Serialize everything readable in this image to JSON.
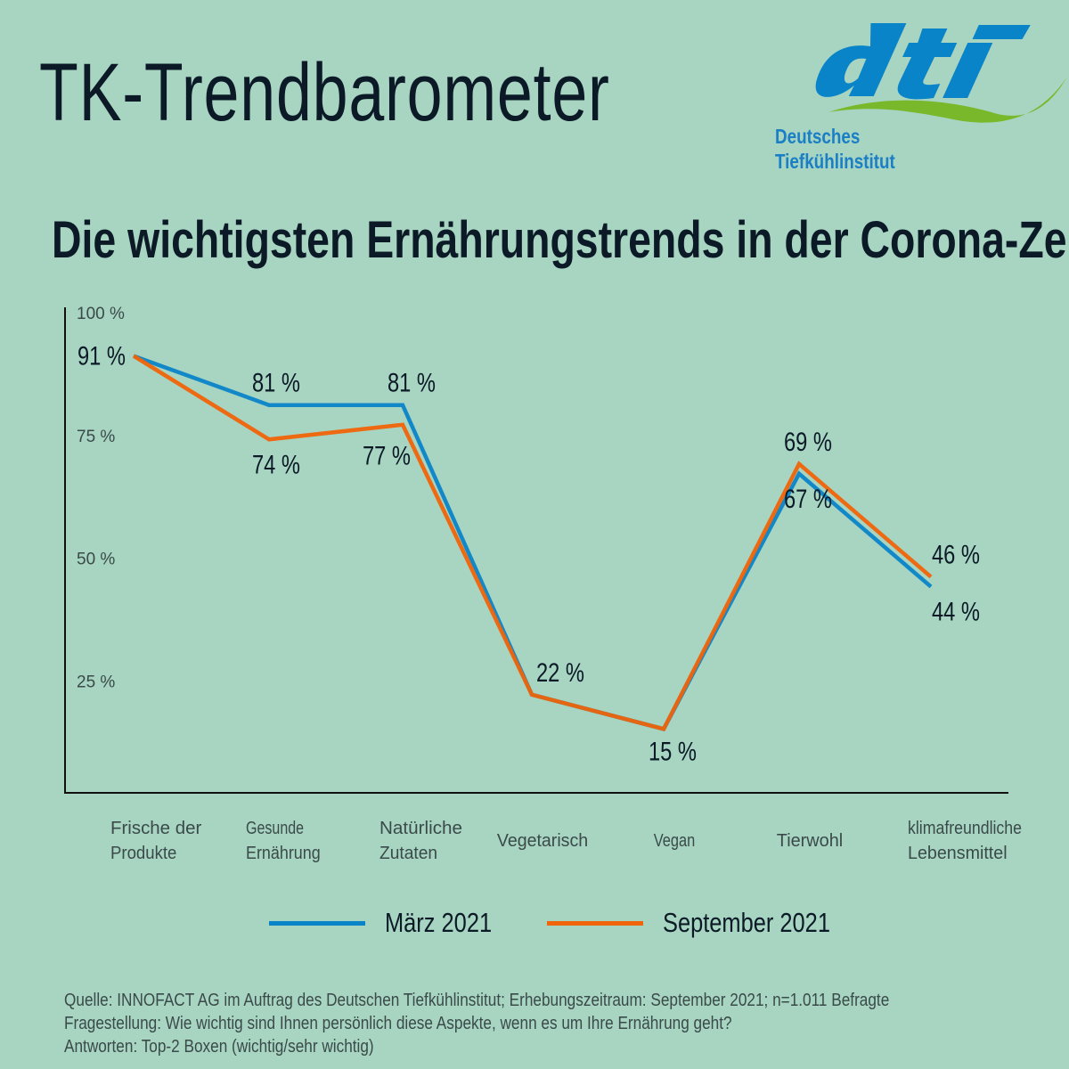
{
  "header": {
    "title": "TK-Trendbarometer",
    "subtitle": "Die wichtigsten Ernährungstrends in der Corona-Zeit"
  },
  "logo": {
    "mark": "dti",
    "line1": "Deutsches",
    "line2": "Tiefkühlinstitut"
  },
  "colors": {
    "background": "#a8d5c2",
    "march": "#0a84c8",
    "september": "#f0640a",
    "logo_blue": "#0a84c8",
    "logo_green": "#78b82a"
  },
  "chart_data": {
    "type": "line",
    "title": "Die wichtigsten Ernährungstrends in der Corona-Zeit",
    "categories": [
      [
        "Frische der",
        "Produkte"
      ],
      [
        "Gesunde",
        "Ernährung"
      ],
      [
        "Natürliche",
        "Zutaten"
      ],
      [
        "Vegetarisch"
      ],
      [
        "Vegan"
      ],
      [
        "Tierwohl"
      ],
      [
        "klimafreundliche",
        "Lebensmittel"
      ]
    ],
    "series": [
      {
        "name": "März 2021",
        "values": [
          91,
          81,
          81,
          22,
          15,
          67,
          44
        ]
      },
      {
        "name": "September 2021",
        "values": [
          91,
          74,
          77,
          22,
          15,
          69,
          46
        ]
      }
    ],
    "yticks": [
      "100 %",
      "75 %",
      "50 %",
      "25 %"
    ],
    "ytick_values": [
      100,
      75,
      50,
      25
    ],
    "ylim": [
      0,
      100
    ],
    "unit": " %",
    "legend": "bottom",
    "grid": false
  },
  "footer": {
    "source": "Quelle: INNOFACT AG im Auftrag des Deutschen Tiefkühlinstitut; Erhebungszeitraum: September 2021; n=1.011 Befragte",
    "question": "Fragestellung: Wie wichtig sind Ihnen persönlich diese Aspekte, wenn es um Ihre Ernährung geht?",
    "answers": "Antworten: Top-2 Boxen (wichtig/sehr wichtig)"
  }
}
